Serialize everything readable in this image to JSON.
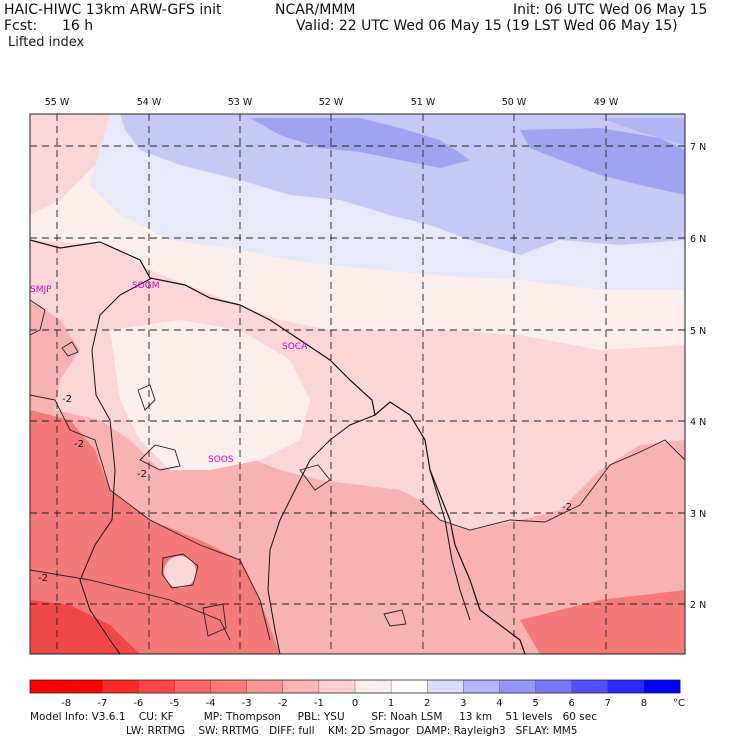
{
  "header": {
    "model": "HAIC-HIWC 13km ARW-GFS init",
    "org": "NCAR/MMM",
    "init": "Init: 06 UTC Wed 06 May 15",
    "fcst_label": "Fcst:",
    "fcst_value": "16 h",
    "valid": "Valid: 22 UTC Wed 06 May 15 (19 LST Wed 06 May 15)",
    "field": "Lifted index"
  },
  "map": {
    "lon_labels": [
      "55 W",
      "54 W",
      "53 W",
      "52 W",
      "51 W",
      "50 W",
      "49 W"
    ],
    "lat_labels": [
      "7 N",
      "6 N",
      "5 N",
      "4 N",
      "3 N",
      "2 N"
    ],
    "stations": [
      "SMJP",
      "SOGM",
      "SOCA",
      "SOOS"
    ],
    "contour_label": "-2",
    "colors": {
      "neg_strong": "#f04848",
      "neg_mid": "#f47a7a",
      "neg_light": "#f8b2b2",
      "neg_faint": "#fbd6d6",
      "near_zero": "#fdeeee",
      "pos_faint": "#e8e8fb",
      "pos_light": "#c6c8f6",
      "pos_mid": "#9fa4f0",
      "station": "#cc00cc"
    }
  },
  "colorbar": {
    "ticks": [
      "-8",
      "-7",
      "-6",
      "-5",
      "-4",
      "-3",
      "-2",
      "-1",
      "0",
      "1",
      "2",
      "3",
      "4",
      "5",
      "6",
      "7",
      "8"
    ],
    "unit": "°C",
    "colors": [
      "#ff0000",
      "#ff2828",
      "#ff4646",
      "#ff6464",
      "#ff7878",
      "#ff9696",
      "#ffb4b4",
      "#ffd2d2",
      "#ffeeee",
      "#ffffff",
      "#dcdcff",
      "#b4b4ff",
      "#9696ff",
      "#7878ff",
      "#5050ff",
      "#2828ff",
      "#0000ff"
    ]
  },
  "footer": {
    "line1": "Model Info: V3.6.1    CU: KF         MP: Thompson     PBL: YSU        SF: Noah LSM     13 km    51 levels   60 sec",
    "line2": "LW: RRTMG    SW: RRTMG   DIFF: full    KM: 2D Smagor  DAMP: Rayleigh3   SFLAY: MM5"
  }
}
